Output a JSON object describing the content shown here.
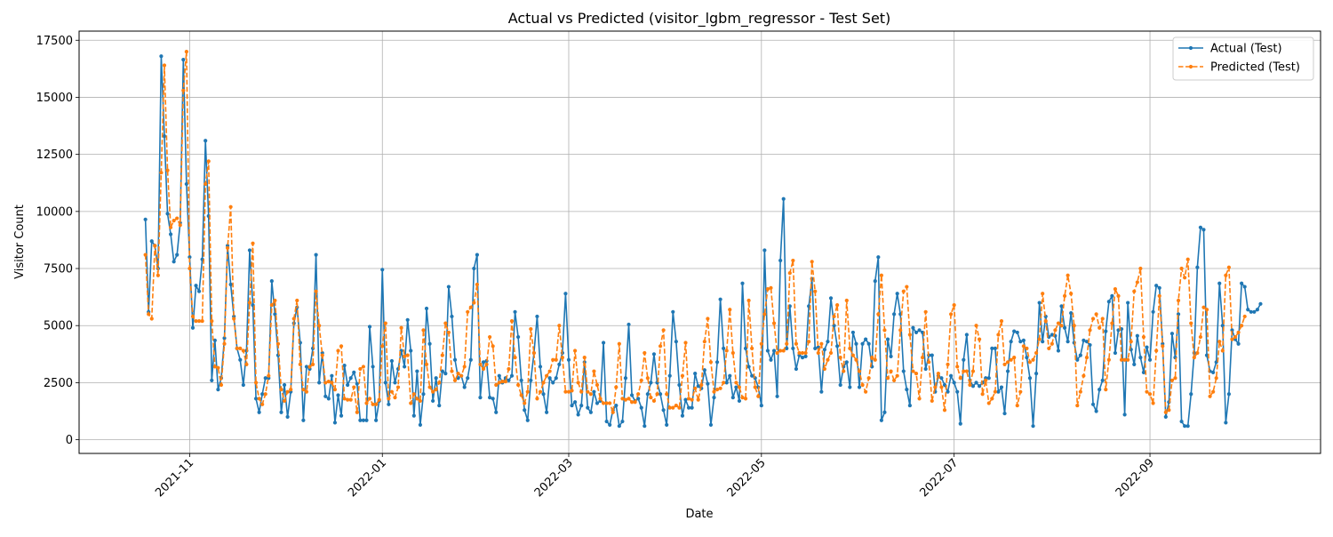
{
  "chart_data": {
    "type": "line",
    "title": "Actual vs Predicted (visitor_lgbm_regressor - Test Set)",
    "xlabel": "Date",
    "ylabel": "Visitor Count",
    "xlim": [
      "2021-09-27",
      "2022-10-25"
    ],
    "ylim": [
      -600,
      17900
    ],
    "x_ticks": [
      "2021-11",
      "2022-01",
      "2022-03",
      "2022-05",
      "2022-07",
      "2022-09"
    ],
    "y_ticks": [
      0,
      2500,
      5000,
      7500,
      10000,
      12500,
      15000,
      17500
    ],
    "grid": true,
    "legend_position": "upper right",
    "colors": {
      "actual": "#1f77b4",
      "predicted": "#ff7f0e"
    },
    "x_start": "2021-10-18",
    "x_step_days": 1,
    "series": [
      {
        "name": "Actual (Test)",
        "style": "solid",
        "values": [
          9650,
          5600,
          8700,
          8500,
          7500,
          16800,
          13300,
          9900,
          9000,
          7800,
          8100,
          9500,
          16650,
          11200,
          8000,
          4900,
          6750,
          6500,
          7900,
          13100,
          9800,
          2600,
          4350,
          2200,
          2700,
          4450,
          8500,
          6800,
          5400,
          4000,
          3500,
          2400,
          3900,
          8300,
          5900,
          1800,
          1200,
          2000,
          2700,
          2700,
          6950,
          5500,
          3700,
          1200,
          2400,
          1000,
          2100,
          5100,
          5800,
          4250,
          850,
          3200,
          3100,
          4000,
          8100,
          2500,
          3800,
          1900,
          1800,
          2800,
          750,
          1950,
          1050,
          3250,
          2400,
          2700,
          2950,
          2450,
          850,
          850,
          850,
          4950,
          3200,
          850,
          1700,
          7450,
          2500,
          1550,
          3450,
          2500,
          3100,
          3900,
          3200,
          5250,
          3900,
          1050,
          3000,
          650,
          2000,
          5750,
          4200,
          1700,
          2700,
          1500,
          3000,
          2900,
          6700,
          5400,
          3500,
          2700,
          2800,
          2300,
          2700,
          3500,
          7500,
          8100,
          1850,
          3400,
          3450,
          1850,
          1800,
          1200,
          2800,
          2500,
          2700,
          2600,
          2800,
          5600,
          4500,
          2600,
          1300,
          850,
          2600,
          3800,
          5400,
          3200,
          2000,
          1200,
          2700,
          2500,
          2700,
          3300,
          3800,
          6400,
          3500,
          1500,
          1650,
          1100,
          1500,
          3400,
          1400,
          1200,
          2100,
          1600,
          1700,
          4250,
          800,
          650,
          1300,
          1500,
          600,
          800,
          2700,
          5050,
          1950,
          1700,
          1800,
          1400,
          600,
          2000,
          2500,
          3750,
          2500,
          2000,
          1300,
          650,
          2800,
          5600,
          4300,
          2400,
          1050,
          1750,
          1400,
          1400,
          2900,
          2350,
          2250,
          3050,
          2450,
          650,
          1850,
          3400,
          6150,
          4000,
          2500,
          2800,
          1850,
          2300,
          1700,
          6850,
          4000,
          3200,
          2800,
          2700,
          2300,
          1500,
          8300,
          3900,
          3500,
          3900,
          1900,
          7850,
          10550,
          4000,
          5850,
          4000,
          3100,
          3700,
          3600,
          3650,
          5850,
          7050,
          4000,
          4050,
          2100,
          3950,
          4300,
          6200,
          5000,
          4100,
          2400,
          3200,
          3400,
          2300,
          4700,
          4200,
          2300,
          4200,
          4400,
          4200,
          3200,
          6950,
          8000,
          850,
          1200,
          4400,
          3650,
          5500,
          6400,
          5500,
          3000,
          2200,
          1500,
          4900,
          4700,
          4800,
          4700,
          3100,
          3700,
          3700,
          2100,
          2800,
          2700,
          2400,
          2100,
          2800,
          2500,
          2100,
          700,
          3500,
          4600,
          2600,
          2350,
          2500,
          2350,
          2500,
          2700,
          2700,
          4000,
          4000,
          2100,
          2300,
          1150,
          3000,
          4300,
          4750,
          4700,
          4300,
          4350,
          3600,
          2700,
          600,
          2900,
          6000,
          4300,
          5400,
          4500,
          4600,
          4550,
          3900,
          5850,
          4900,
          4300,
          5550,
          4250,
          3500,
          3700,
          4350,
          4300,
          4150,
          1550,
          1250,
          2200,
          2600,
          4750,
          6050,
          6300,
          3800,
          4800,
          4850,
          1100,
          6000,
          3950,
          3300,
          4550,
          3600,
          2950,
          4050,
          3500,
          5600,
          6750,
          6650,
          4200,
          1000,
          1650,
          4650,
          3600,
          5500,
          800,
          600,
          600,
          2000,
          3800,
          7550,
          9300,
          9200,
          3700,
          3000,
          2950,
          3400,
          6850,
          5000,
          750,
          2000,
          4800,
          4400,
          4200,
          6850,
          6700,
          5700,
          5600,
          5600,
          5700,
          5950
        ]
      },
      {
        "name": "Predicted (Test)",
        "style": "dashed",
        "values": [
          8100,
          5500,
          5300,
          8500,
          7200,
          11700,
          16400,
          11800,
          9300,
          9600,
          9700,
          9400,
          15300,
          17000,
          7500,
          5400,
          5200,
          5200,
          5200,
          11200,
          12200,
          5200,
          3200,
          3150,
          2400,
          4200,
          8400,
          10200,
          5300,
          4000,
          4000,
          3900,
          3300,
          6000,
          8600,
          2500,
          1800,
          1550,
          2000,
          2800,
          5900,
          6100,
          4200,
          2200,
          1700,
          2100,
          2200,
          5300,
          6100,
          3300,
          2200,
          2100,
          3200,
          3300,
          6500,
          5000,
          3700,
          2500,
          2550,
          2500,
          2200,
          3900,
          4100,
          1800,
          1750,
          1750,
          2300,
          1200,
          3100,
          3200,
          1600,
          1800,
          1550,
          1550,
          1750,
          4100,
          5100,
          1800,
          2100,
          1850,
          2300,
          4900,
          3650,
          3700,
          1600,
          2000,
          1800,
          1700,
          4800,
          3300,
          2300,
          2100,
          2200,
          2500,
          3700,
          5100,
          4700,
          3000,
          2600,
          2900,
          2800,
          3200,
          5600,
          5800,
          6000,
          6800,
          3300,
          3100,
          3300,
          4500,
          4100,
          2400,
          2500,
          2550,
          2550,
          3100,
          5200,
          3600,
          2400,
          1950,
          1600,
          2100,
          4850,
          3800,
          1800,
          2100,
          2500,
          2800,
          3000,
          3500,
          3500,
          5000,
          3600,
          2100,
          2100,
          2150,
          3900,
          2500,
          2100,
          3600,
          2100,
          2000,
          3000,
          2400,
          1800,
          1600,
          1600,
          1600,
          1200,
          2300,
          4200,
          1800,
          1750,
          1800,
          1650,
          1650,
          2000,
          2600,
          3800,
          2700,
          1850,
          1700,
          2000,
          4100,
          4800,
          2000,
          1400,
          1400,
          1500,
          1400,
          2800,
          4250,
          1800,
          1750,
          2250,
          1750,
          2400,
          4300,
          5300,
          3400,
          2100,
          2200,
          2250,
          2500,
          3900,
          5700,
          3800,
          2500,
          2300,
          1850,
          1800,
          6100,
          4000,
          2300,
          1900,
          4200,
          5500,
          6600,
          6650,
          5100,
          3800,
          3900,
          3900,
          4200,
          7300,
          7850,
          4200,
          3800,
          3800,
          3800,
          4300,
          7800,
          6500,
          3800,
          4200,
          3100,
          3500,
          3800,
          5400,
          5900,
          3600,
          3000,
          6100,
          4000,
          3700,
          3500,
          3000,
          2400,
          2100,
          2700,
          3600,
          3500,
          5500,
          7200,
          4800,
          2700,
          3000,
          2600,
          2800,
          4800,
          6500,
          6700,
          4600,
          3000,
          2900,
          1800,
          3600,
          5600,
          3400,
          1700,
          2300,
          2900,
          2300,
          1300,
          3300,
          5500,
          5900,
          3200,
          2700,
          3000,
          3000,
          2400,
          3000,
          5000,
          4400,
          2000,
          2600,
          1600,
          1800,
          2100,
          4600,
          5200,
          3300,
          3400,
          3500,
          3600,
          1500,
          2100,
          4100,
          4000,
          3400,
          3500,
          3800,
          4400,
          6400,
          5200,
          4000,
          4200,
          4800,
          5100,
          5000,
          6300,
          7200,
          6400,
          5000,
          1500,
          2100,
          2800,
          3600,
          4800,
          5300,
          5500,
          4900,
          5300,
          2200,
          3500,
          5100,
          6600,
          6300,
          3500,
          3500,
          3500,
          4300,
          6500,
          6900,
          7500,
          4500,
          2100,
          2000,
          1600,
          3900,
          6300,
          4100,
          1200,
          1300,
          2600,
          2700,
          6100,
          7500,
          7100,
          7900,
          5100,
          3600,
          3800,
          4500,
          5800,
          5700,
          1900,
          2100,
          2700,
          4300,
          3900,
          7200,
          7550,
          4400,
          4500,
          4700,
          5000,
          5400
        ]
      }
    ]
  }
}
